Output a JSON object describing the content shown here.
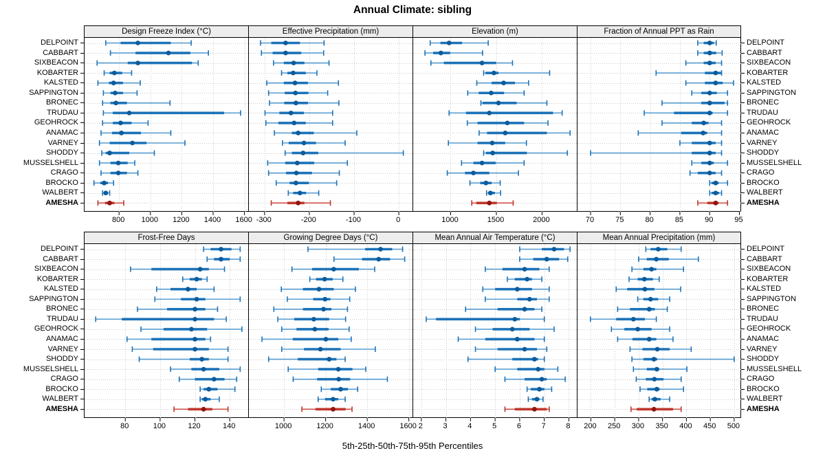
{
  "title": "Annual Climate: sibling",
  "footer": "5th-25th-50th-75th-95th Percentiles",
  "highlight_station": "AMESHA",
  "stations": [
    "DELPOINT",
    "CABBART",
    "SIXBEACON",
    "KOBARTER",
    "KALSTED",
    "SAPPINGTON",
    "BRONEC",
    "TRUDAU",
    "GEOHROCK",
    "ANAMAC",
    "VARNEY",
    "SHODDY",
    "MUSSELSHELL",
    "CRAGO",
    "BROCKO",
    "WALBERT",
    "AMESHA"
  ],
  "colors": {
    "blue_whisker": "#5c9fd3",
    "blue_bar": "#1c72b7",
    "blue_dot": "#0d5c9b",
    "red_whisker": "#cd5149",
    "red_bar": "#bf372d",
    "red_dot": "#911511",
    "grid": "#c9c9c9",
    "strip_bg": "#ededed",
    "axis": "#000000"
  },
  "chart_data": [
    {
      "type": "percentile-dotplot",
      "percentiles": [
        5,
        25,
        50,
        75,
        95
      ],
      "label": "Design Freeze Index (°C)",
      "ticks": [
        800,
        1000,
        1200,
        1400,
        1600
      ],
      "tick_labels": [
        "800",
        "1000",
        "1200",
        "1400",
        "1600"
      ],
      "xlim": [
        580,
        1628
      ],
      "values": [
        [
          715,
          810,
          920,
          1130,
          1260
        ],
        [
          745,
          905,
          1115,
          1255,
          1370
        ],
        [
          660,
          855,
          920,
          1265,
          1305
        ],
        [
          705,
          740,
          770,
          820,
          880
        ],
        [
          665,
          735,
          765,
          825,
          935
        ],
        [
          700,
          745,
          775,
          825,
          915
        ],
        [
          695,
          745,
          780,
          850,
          1125
        ],
        [
          700,
          760,
          865,
          1470,
          1575
        ],
        [
          695,
          760,
          810,
          880,
          985
        ],
        [
          685,
          755,
          815,
          940,
          1130
        ],
        [
          675,
          740,
          885,
          975,
          1220
        ],
        [
          690,
          715,
          740,
          865,
          1025
        ],
        [
          675,
          745,
          795,
          855,
          900
        ],
        [
          685,
          745,
          795,
          850,
          920
        ],
        [
          640,
          680,
          705,
          730,
          765
        ],
        [
          695,
          705,
          715,
          730,
          740
        ],
        [
          665,
          710,
          740,
          770,
          830
        ]
      ]
    },
    {
      "type": "percentile-dotplot",
      "percentiles": [
        5,
        25,
        50,
        75,
        95
      ],
      "label": "Effective Precipitation (mm)",
      "ticks": [
        -300,
        -200,
        -100,
        0
      ],
      "tick_labels": [
        "-300",
        "-200",
        "-100",
        "0"
      ],
      "xlim": [
        -335,
        32
      ],
      "values": [
        [
          -309,
          -285,
          -253,
          -221,
          -167
        ],
        [
          -307,
          -282,
          -253,
          -218,
          -168
        ],
        [
          -280,
          -257,
          -235,
          -211,
          -156
        ],
        [
          -262,
          -249,
          -236,
          -208,
          -183
        ],
        [
          -295,
          -257,
          -232,
          -203,
          -135
        ],
        [
          -291,
          -255,
          -231,
          -202,
          -159
        ],
        [
          -289,
          -256,
          -230,
          -203,
          -134
        ],
        [
          -299,
          -267,
          -241,
          -212,
          -148
        ],
        [
          -297,
          -269,
          -234,
          -208,
          -148
        ],
        [
          -278,
          -239,
          -225,
          -190,
          -94
        ],
        [
          -260,
          -246,
          -212,
          -185,
          -120
        ],
        [
          -254,
          -239,
          -214,
          -180,
          10
        ],
        [
          -293,
          -254,
          -227,
          -189,
          -115
        ],
        [
          -291,
          -252,
          -229,
          -194,
          -133
        ],
        [
          -274,
          -244,
          -230,
          -201,
          -139
        ],
        [
          -247,
          -236,
          -221,
          -207,
          -179
        ],
        [
          -285,
          -249,
          -225,
          -211,
          -153
        ]
      ]
    },
    {
      "type": "percentile-dotplot",
      "percentiles": [
        5,
        25,
        50,
        75,
        95
      ],
      "label": "Elevation (m)",
      "ticks": [
        1000,
        1500,
        2000
      ],
      "tick_labels": [
        "1000",
        "1500",
        "2000"
      ],
      "xlim": [
        590,
        2388
      ],
      "values": [
        [
          776,
          888,
          983,
          1125,
          1411
        ],
        [
          719,
          808,
          893,
          995,
          1349
        ],
        [
          784,
          925,
          1343,
          1498,
          1677
        ],
        [
          1361,
          1381,
          1473,
          1523,
          2083
        ],
        [
          1286,
          1448,
          1580,
          1704,
          1853
        ],
        [
          1187,
          1306,
          1443,
          1585,
          1804
        ],
        [
          1331,
          1348,
          1523,
          1722,
          2053
        ],
        [
          983,
          1167,
          1423,
          2120,
          2220
        ],
        [
          1182,
          1294,
          1620,
          1804,
          2065
        ],
        [
          1311,
          1398,
          1597,
          2053,
          2307
        ],
        [
          975,
          1294,
          1455,
          1597,
          1829
        ],
        [
          1361,
          1386,
          1460,
          1834,
          2277
        ],
        [
          1119,
          1249,
          1343,
          1493,
          1804
        ],
        [
          963,
          1157,
          1249,
          1423,
          1742
        ],
        [
          1211,
          1323,
          1386,
          1448,
          1542
        ],
        [
          1393,
          1410,
          1435,
          1485,
          1547
        ],
        [
          1231,
          1281,
          1423,
          1505,
          1684
        ]
      ]
    },
    {
      "type": "percentile-dotplot",
      "percentiles": [
        5,
        25,
        50,
        75,
        95
      ],
      "label": "Fraction of Annual PPT as Rain",
      "ticks": [
        70,
        75,
        80,
        85,
        90,
        95
      ],
      "tick_labels": [
        "70",
        "75",
        "80",
        "85",
        "90",
        "95"
      ],
      "xlim": [
        67.8,
        95.4
      ],
      "values": [
        [
          88,
          89,
          90,
          90.7,
          91.1
        ],
        [
          88,
          89,
          90,
          91.1,
          92.1
        ],
        [
          86,
          89,
          90,
          91,
          92
        ],
        [
          81,
          89.2,
          91,
          91.9,
          92
        ],
        [
          86,
          89.2,
          91,
          92.2,
          94
        ],
        [
          87,
          88.6,
          90,
          91.2,
          93
        ],
        [
          82,
          88.6,
          90,
          92.5,
          93
        ],
        [
          79,
          84,
          90,
          90.5,
          93
        ],
        [
          82,
          87,
          89,
          89.8,
          92
        ],
        [
          78,
          85.2,
          88.9,
          89.6,
          92
        ],
        [
          85,
          87,
          90,
          91,
          92
        ],
        [
          70,
          87,
          90,
          91,
          92
        ],
        [
          87,
          88.6,
          90,
          90.7,
          93
        ],
        [
          86.7,
          88,
          90,
          91,
          92
        ],
        [
          90,
          90.3,
          91,
          91.5,
          93
        ],
        [
          90,
          90.3,
          91,
          91.6,
          92
        ],
        [
          88,
          89.6,
          91,
          91.5,
          93
        ]
      ]
    },
    {
      "type": "percentile-dotplot",
      "percentiles": [
        5,
        25,
        50,
        75,
        95
      ],
      "label": "Frost-Free Days",
      "ticks": [
        80,
        100,
        120,
        140
      ],
      "tick_labels": [
        "80",
        "100",
        "120",
        "140"
      ],
      "xlim": [
        56.6,
        151
      ],
      "values": [
        [
          125,
          129,
          135,
          141,
          146
        ],
        [
          127,
          131,
          135,
          140,
          146
        ],
        [
          83,
          95,
          123,
          128,
          137
        ],
        [
          113,
          117,
          121,
          124,
          127
        ],
        [
          98,
          106,
          116,
          121,
          131
        ],
        [
          97,
          112,
          121,
          126,
          146
        ],
        [
          87,
          104,
          120,
          126,
          133
        ],
        [
          63,
          78,
          120,
          131,
          138
        ],
        [
          89,
          102,
          118,
          127,
          147
        ],
        [
          81,
          95,
          120,
          126,
          129
        ],
        [
          84,
          96,
          120,
          128,
          139
        ],
        [
          88,
          117,
          124,
          128,
          139
        ],
        [
          106,
          118,
          125,
          134,
          146
        ],
        [
          111,
          120,
          131,
          137,
          144
        ],
        [
          123,
          125,
          128,
          133,
          143
        ],
        [
          123,
          124,
          126,
          129,
          134
        ],
        [
          108,
          116,
          125,
          130,
          139
        ]
      ]
    },
    {
      "type": "percentile-dotplot",
      "percentiles": [
        5,
        25,
        50,
        75,
        95
      ],
      "label": "Growing Degree Days (°C)",
      "ticks": [
        1000,
        1200,
        1400,
        1600
      ],
      "tick_labels": [
        "1000",
        "1200",
        "1400",
        "1600"
      ],
      "xlim": [
        831,
        1621
      ],
      "values": [
        [
          1115,
          1390,
          1464,
          1520,
          1570
        ],
        [
          1240,
          1375,
          1455,
          1510,
          1580
        ],
        [
          1038,
          1135,
          1239,
          1360,
          1436
        ],
        [
          1124,
          1154,
          1195,
          1234,
          1283
        ],
        [
          987,
          1091,
          1168,
          1239,
          1343
        ],
        [
          1016,
          1140,
          1197,
          1223,
          1316
        ],
        [
          951,
          1091,
          1190,
          1228,
          1305
        ],
        [
          970,
          1049,
          1143,
          1217,
          1296
        ],
        [
          989,
          1060,
          1148,
          1214,
          1313
        ],
        [
          894,
          1042,
          1201,
          1261,
          1323
        ],
        [
          989,
          1096,
          1175,
          1272,
          1439
        ],
        [
          926,
          1066,
          1217,
          1252,
          1294
        ],
        [
          1020,
          1164,
          1261,
          1329,
          1393
        ],
        [
          1044,
          1159,
          1263,
          1318,
          1497
        ],
        [
          1179,
          1225,
          1272,
          1307,
          1354
        ],
        [
          1164,
          1197,
          1236,
          1261,
          1294
        ],
        [
          1086,
          1151,
          1236,
          1296,
          1327
        ]
      ]
    },
    {
      "type": "percentile-dotplot",
      "percentiles": [
        5,
        25,
        50,
        75,
        95
      ],
      "label": "Mean Annual Air Temperature (°C)",
      "ticks": [
        2,
        3,
        4,
        5,
        6,
        7,
        8
      ],
      "tick_labels": [
        "2",
        "3",
        "4",
        "5",
        "6",
        "7",
        "8"
      ],
      "xlim": [
        1.67,
        8.35
      ],
      "values": [
        [
          6.0,
          6.9,
          7.4,
          7.8,
          8.05
        ],
        [
          6.0,
          6.55,
          7.1,
          7.6,
          7.95
        ],
        [
          4.6,
          5.3,
          6.2,
          6.8,
          7.2
        ],
        [
          5.5,
          5.8,
          6.3,
          6.5,
          6.9
        ],
        [
          4.5,
          5.0,
          5.9,
          6.5,
          7.2
        ],
        [
          4.6,
          5.9,
          6.4,
          6.7,
          7.2
        ],
        [
          3.8,
          5.1,
          6.2,
          6.6,
          6.9
        ],
        [
          2.2,
          2.6,
          5.8,
          6.0,
          7.0
        ],
        [
          4.2,
          4.9,
          5.7,
          6.4,
          7.4
        ],
        [
          3.5,
          4.6,
          5.9,
          6.6,
          7.0
        ],
        [
          4.2,
          5.1,
          6.2,
          6.7,
          7.1
        ],
        [
          3.9,
          5.7,
          6.6,
          6.75,
          7.0
        ],
        [
          5.0,
          5.9,
          6.75,
          7.0,
          7.55
        ],
        [
          5.4,
          6.2,
          6.9,
          7.1,
          7.85
        ],
        [
          6.3,
          6.45,
          6.8,
          7.0,
          7.3
        ],
        [
          6.35,
          6.5,
          6.7,
          6.8,
          6.95
        ],
        [
          5.4,
          5.8,
          6.6,
          7.1,
          7.2
        ]
      ]
    },
    {
      "type": "percentile-dotplot",
      "percentiles": [
        5,
        25,
        50,
        75,
        95
      ],
      "label": "Mean Annual Precipitation (mm)",
      "ticks": [
        200,
        250,
        300,
        350,
        400,
        450,
        500
      ],
      "tick_labels": [
        "200",
        "250",
        "300",
        "350",
        "400",
        "450",
        "500"
      ],
      "xlim": [
        172,
        516
      ],
      "values": [
        [
          315,
          325,
          341,
          360,
          389
        ],
        [
          300,
          317,
          337,
          363,
          425
        ],
        [
          286,
          310,
          327,
          337,
          394
        ],
        [
          280,
          298,
          312,
          330,
          343
        ],
        [
          253,
          276,
          313,
          333,
          388
        ],
        [
          298,
          310,
          325,
          341,
          365
        ],
        [
          256,
          282,
          322,
          334,
          360
        ],
        [
          199,
          253,
          289,
          313,
          337
        ],
        [
          243,
          270,
          298,
          327,
          365
        ],
        [
          256,
          287,
          322,
          337,
          372
        ],
        [
          282,
          308,
          339,
          365,
          410
        ],
        [
          286,
          310,
          332,
          339,
          500
        ],
        [
          289,
          317,
          338,
          343,
          401
        ],
        [
          295,
          315,
          333,
          352,
          389
        ],
        [
          303,
          318,
          338,
          344,
          394
        ],
        [
          322,
          327,
          334,
          346,
          365
        ],
        [
          284,
          296,
          332,
          372,
          389
        ]
      ]
    }
  ]
}
